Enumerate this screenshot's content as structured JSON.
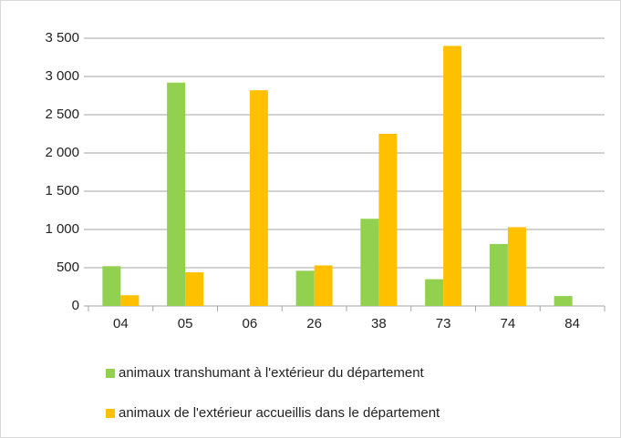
{
  "chart_data": {
    "type": "bar",
    "categories": [
      "04",
      "05",
      "06",
      "26",
      "38",
      "73",
      "74",
      "84"
    ],
    "series": [
      {
        "name": "animaux transhumant à l'extérieur du département",
        "color": "#92d050",
        "values": [
          520,
          2920,
          0,
          460,
          1140,
          350,
          810,
          130
        ]
      },
      {
        "name": "animaux de l'extérieur accueillis dans le département",
        "color": "#ffc000",
        "values": [
          140,
          440,
          2820,
          530,
          2250,
          3400,
          1030,
          0
        ]
      }
    ],
    "ylim": [
      0,
      3500
    ],
    "yticks": [
      0,
      500,
      {
        "value": 1000,
        "label": "1 000"
      },
      {
        "value": 1500,
        "label": "1 500"
      },
      {
        "value": 2000,
        "label": "2 000"
      },
      {
        "value": 2500,
        "label": "2 500"
      },
      {
        "value": 3000,
        "label": "3 000"
      },
      {
        "value": 3500,
        "label": "3 500"
      }
    ],
    "grid": true,
    "legend": "bottom"
  }
}
